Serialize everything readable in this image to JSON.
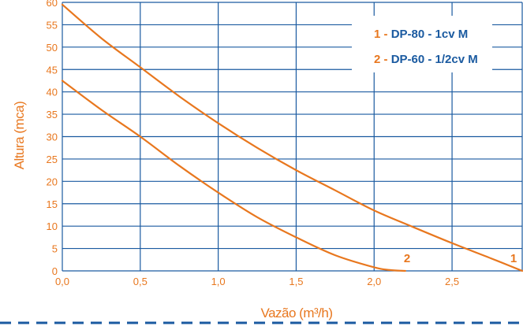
{
  "chart_data": {
    "type": "line",
    "xlabel": "Vazão (m³/h)",
    "ylabel": "Altura (mca)",
    "xlim": [
      0,
      2.95
    ],
    "ylim": [
      0,
      60
    ],
    "xticks": [
      "0,0",
      "0,5",
      "1,0",
      "1,5",
      "2,0",
      "2,5"
    ],
    "xtick_values": [
      0,
      0.5,
      1.0,
      1.5,
      2.0,
      2.5
    ],
    "yticks": [
      "0",
      "5",
      "10",
      "15",
      "20",
      "25",
      "30",
      "35",
      "40",
      "45",
      "50",
      "55",
      "60"
    ],
    "ytick_values": [
      0,
      5,
      10,
      15,
      20,
      25,
      30,
      35,
      40,
      45,
      50,
      55,
      60
    ],
    "grid": true,
    "legend_position": "top-right",
    "series": [
      {
        "name": "DP-80 - 1cv M",
        "number": "1",
        "color": "#e8771e",
        "x": [
          0,
          0.25,
          0.5,
          0.75,
          1.0,
          1.25,
          1.5,
          1.75,
          2.0,
          2.25,
          2.5,
          2.75,
          2.95
        ],
        "y": [
          59.5,
          52,
          45.5,
          39,
          33,
          27.5,
          22.5,
          18,
          13.5,
          9.8,
          6.2,
          2.8,
          0
        ]
      },
      {
        "name": "DP-60 - 1/2cv M",
        "number": "2",
        "color": "#e8771e",
        "x": [
          0,
          0.25,
          0.5,
          0.75,
          1.0,
          1.25,
          1.5,
          1.75,
          2.0,
          2.1,
          2.2
        ],
        "y": [
          42.5,
          36,
          30,
          23.5,
          17.5,
          12,
          7.5,
          3.5,
          0.8,
          0.2,
          0
        ]
      }
    ]
  },
  "legend": {
    "items": [
      {
        "number": "1",
        "dash": " - ",
        "label": "DP-80 - 1cv M"
      },
      {
        "number": "2",
        "dash": " - ",
        "label": "DP-60 - 1/2cv M"
      }
    ]
  },
  "curve_labels": [
    "2",
    "1"
  ],
  "colors": {
    "grid": "#1a5aa0",
    "accent": "#e8771e",
    "legend_text": "#1a5aa0",
    "dashed_rule": "#1a5aa0"
  }
}
